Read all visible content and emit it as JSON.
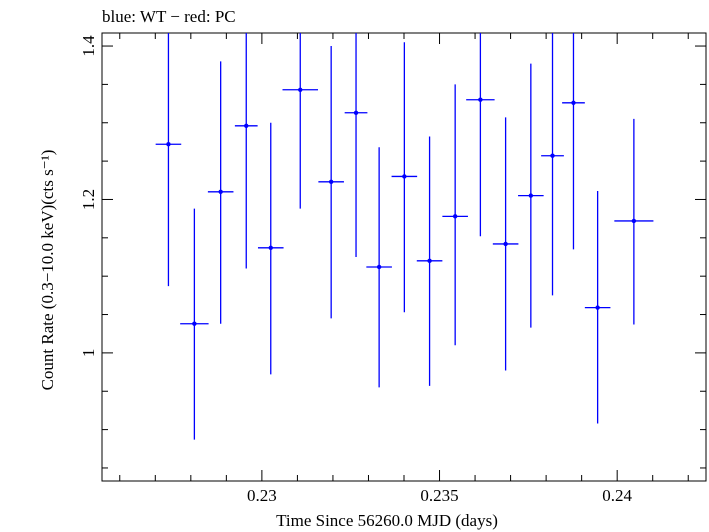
{
  "chart_data": {
    "type": "scatter",
    "title": "blue: WT − red: PC",
    "xlabel": "Time Since 56260.0 MJD (days)",
    "ylabel": "Count Rate (0.3−10.0 keV)(cts s⁻¹)",
    "xlim": [
      0.2255,
      0.2425
    ],
    "ylim": [
      0.833,
      1.417
    ],
    "x_ticks": [
      0.23,
      0.235,
      0.24
    ],
    "x_tick_labels": [
      "0.23",
      "0.235",
      "0.24"
    ],
    "y_ticks": [
      1.0,
      1.2,
      1.4
    ],
    "y_tick_labels": [
      "1",
      "1.2",
      "1.4"
    ],
    "grid": false,
    "series": [
      {
        "color": "#0000ff",
        "points": [
          {
            "x": 0.22737,
            "y": 1.272,
            "xerr": 0.00036,
            "ylo": 1.087,
            "yhi": 1.455
          },
          {
            "x": 0.2281,
            "y": 1.038,
            "xerr": 0.0004,
            "ylo": 0.887,
            "yhi": 1.188
          },
          {
            "x": 0.22884,
            "y": 1.21,
            "xerr": 0.00036,
            "ylo": 1.038,
            "yhi": 1.38
          },
          {
            "x": 0.22956,
            "y": 1.296,
            "xerr": 0.00032,
            "ylo": 1.11,
            "yhi": 1.48
          },
          {
            "x": 0.23025,
            "y": 1.137,
            "xerr": 0.00036,
            "ylo": 0.972,
            "yhi": 1.3
          },
          {
            "x": 0.23108,
            "y": 1.343,
            "xerr": 0.0005,
            "ylo": 1.188,
            "yhi": 1.497
          },
          {
            "x": 0.23195,
            "y": 1.223,
            "xerr": 0.00036,
            "ylo": 1.045,
            "yhi": 1.4
          },
          {
            "x": 0.23265,
            "y": 1.313,
            "xerr": 0.00032,
            "ylo": 1.125,
            "yhi": 1.5
          },
          {
            "x": 0.2333,
            "y": 1.112,
            "xerr": 0.00036,
            "ylo": 0.955,
            "yhi": 1.268
          },
          {
            "x": 0.23401,
            "y": 1.23,
            "xerr": 0.00036,
            "ylo": 1.053,
            "yhi": 1.405
          },
          {
            "x": 0.23472,
            "y": 1.12,
            "xerr": 0.00036,
            "ylo": 0.957,
            "yhi": 1.282
          },
          {
            "x": 0.23544,
            "y": 1.178,
            "xerr": 0.00036,
            "ylo": 1.01,
            "yhi": 1.35
          },
          {
            "x": 0.23615,
            "y": 1.33,
            "xerr": 0.0004,
            "ylo": 1.152,
            "yhi": 1.508
          },
          {
            "x": 0.23686,
            "y": 1.142,
            "xerr": 0.00036,
            "ylo": 0.977,
            "yhi": 1.307
          },
          {
            "x": 0.23757,
            "y": 1.205,
            "xerr": 0.00036,
            "ylo": 1.033,
            "yhi": 1.377
          },
          {
            "x": 0.23818,
            "y": 1.257,
            "xerr": 0.00032,
            "ylo": 1.075,
            "yhi": 1.437
          },
          {
            "x": 0.23877,
            "y": 1.326,
            "xerr": 0.00032,
            "ylo": 1.135,
            "yhi": 1.515
          },
          {
            "x": 0.23945,
            "y": 1.059,
            "xerr": 0.00036,
            "ylo": 0.908,
            "yhi": 1.211
          },
          {
            "x": 0.24047,
            "y": 1.172,
            "xerr": 0.00055,
            "ylo": 1.037,
            "yhi": 1.305
          }
        ]
      }
    ]
  }
}
